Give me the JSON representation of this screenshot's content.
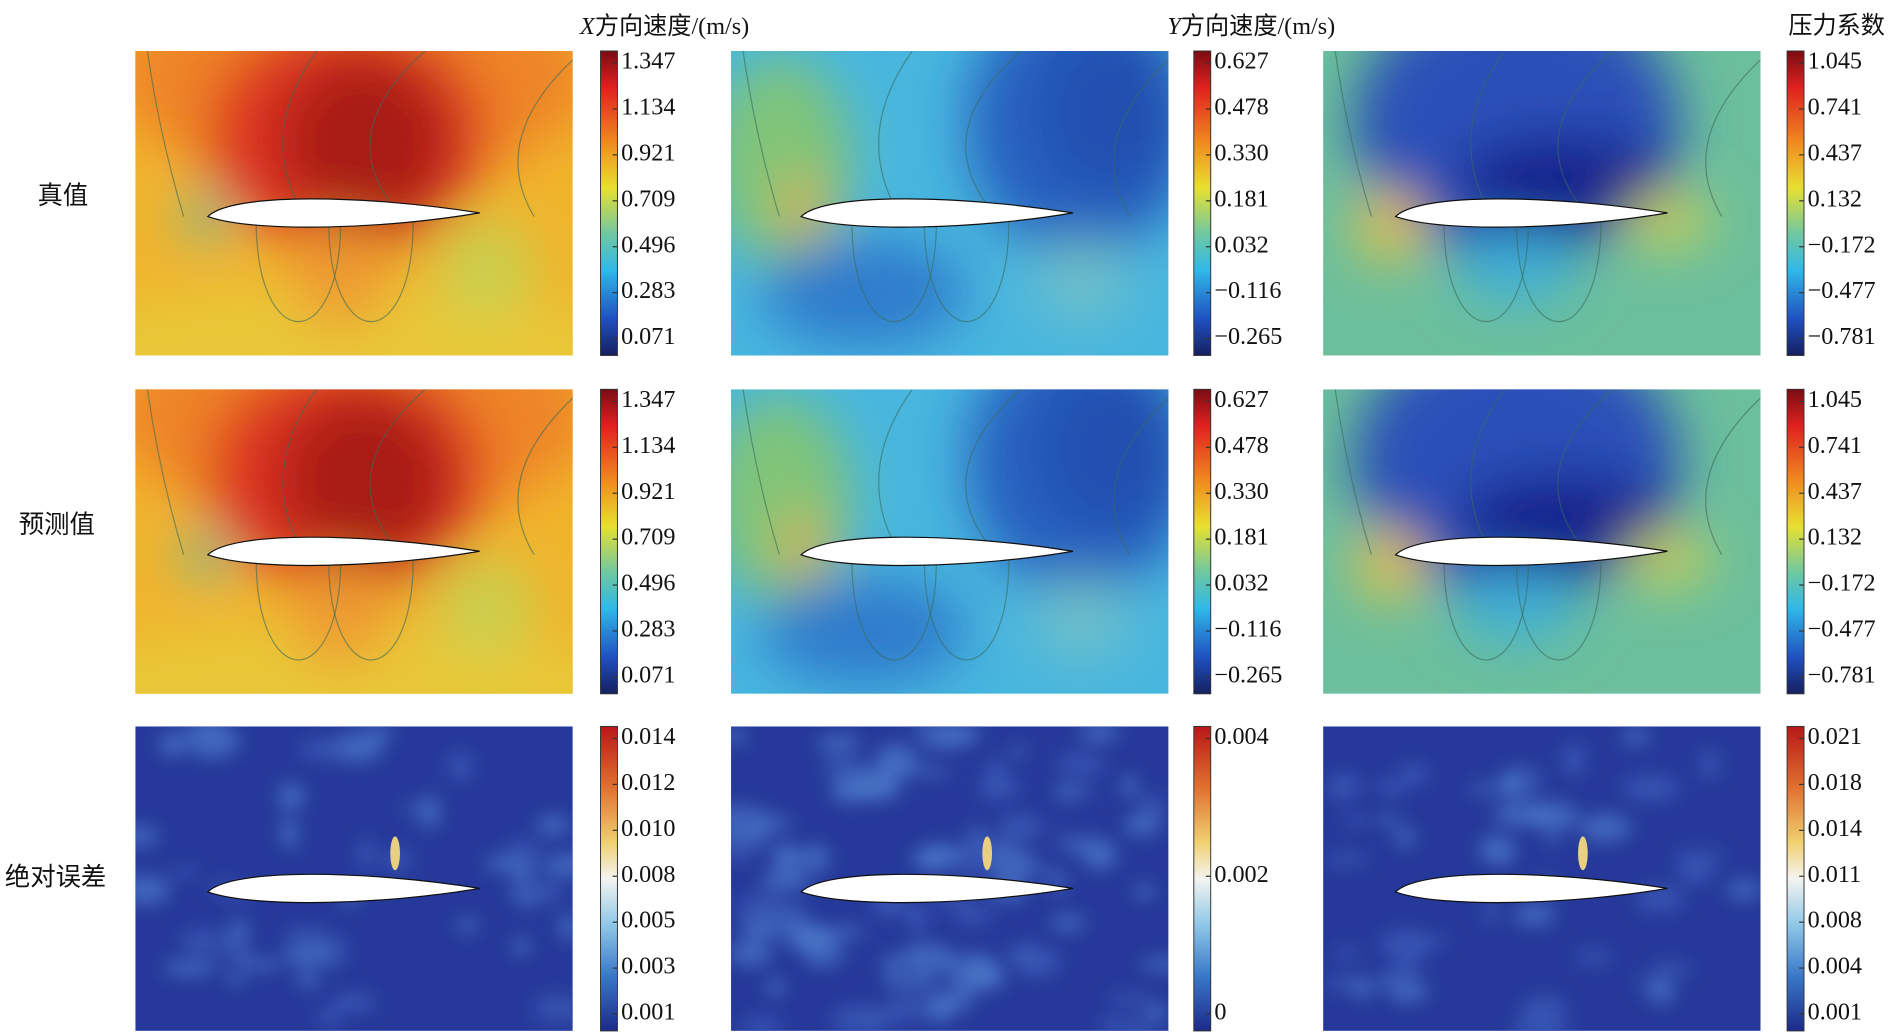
{
  "columns": [
    {
      "title_var": "X",
      "title": "方向速度/(m/s)"
    },
    {
      "title_var": "Y",
      "title": "方向速度/(m/s)"
    },
    {
      "title_var": null,
      "title": "压力系数"
    }
  ],
  "rows": [
    {
      "label": "真值",
      "colorbars": [
        [
          "1.347",
          "1.134",
          "0.921",
          "0.709",
          "0.496",
          "0.283",
          "0.071"
        ],
        [
          "0.627",
          "0.478",
          "0.330",
          "0.181",
          "0.032",
          "−0.116",
          "−0.265"
        ],
        [
          "1.045",
          "0.741",
          "0.437",
          "0.132",
          "−0.172",
          "−0.477",
          "−0.781"
        ]
      ]
    },
    {
      "label": "预测值",
      "colorbars": [
        [
          "1.347",
          "1.134",
          "0.921",
          "0.709",
          "0.496",
          "0.283",
          "0.071"
        ],
        [
          "0.627",
          "0.478",
          "0.330",
          "0.181",
          "0.032",
          "−0.116",
          "−0.265"
        ],
        [
          "1.045",
          "0.741",
          "0.437",
          "0.132",
          "−0.172",
          "−0.477",
          "−0.781"
        ]
      ]
    },
    {
      "label": "绝对误差",
      "colorbars": [
        [
          "0.014",
          "0.012",
          "0.010",
          "0.008",
          "0.005",
          "0.003",
          "0.001"
        ],
        [
          "0.004",
          "0.002",
          "0"
        ],
        [
          "0.021",
          "0.018",
          "0.014",
          "0.011",
          "0.008",
          "0.004",
          "0.001"
        ]
      ]
    }
  ]
}
